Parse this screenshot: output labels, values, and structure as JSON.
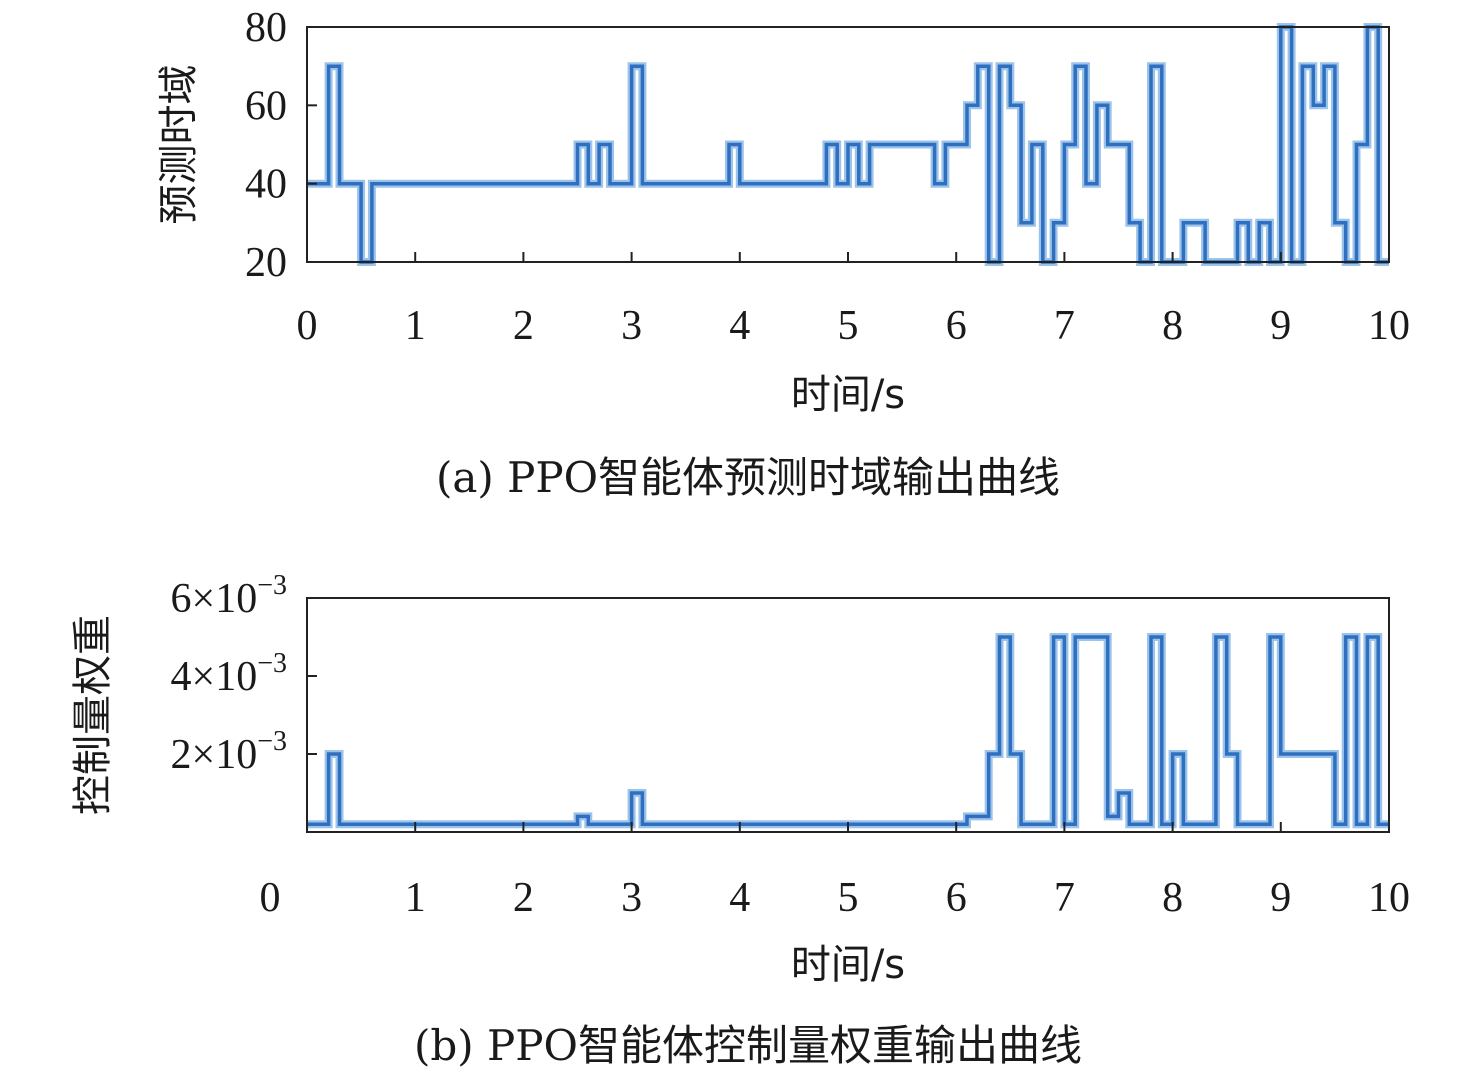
{
  "chart_data": [
    {
      "type": "line",
      "step": true,
      "caption": "(a) PPO智能体预测时域输出曲线",
      "xlabel": "时间/s",
      "ylabel": "预测时域",
      "xlim": [
        0,
        10
      ],
      "ylim": [
        20,
        80
      ],
      "xticks": [
        0,
        1,
        2,
        3,
        4,
        5,
        6,
        7,
        8,
        9,
        10
      ],
      "xtick_labels": [
        "0",
        "1",
        "2",
        "3",
        "4",
        "5",
        "6",
        "7",
        "8",
        "9",
        "10"
      ],
      "yticks": [
        20,
        40,
        60,
        80
      ],
      "ytick_labels": [
        "20",
        "40",
        "60",
        "80"
      ],
      "line_color": "#2f6fc0",
      "grid": false,
      "series": [
        {
          "x": [
            0,
            0.2,
            0.3,
            0.5,
            0.6,
            2.5,
            2.6,
            2.7,
            2.8,
            3.0,
            3.1,
            3.9,
            4.0,
            4.8,
            4.9,
            5.0,
            5.1,
            5.2,
            5.8,
            5.9,
            6.0,
            6.1,
            6.2,
            6.3,
            6.4,
            6.5,
            6.6,
            6.7,
            6.8,
            6.9,
            7.0,
            7.1,
            7.2,
            7.3,
            7.4,
            7.5,
            7.6,
            7.7,
            7.8,
            7.9,
            8.0,
            8.1,
            8.3,
            8.6,
            8.7,
            8.8,
            8.9,
            9.0,
            9.1,
            9.2,
            9.3,
            9.4,
            9.5,
            9.6,
            9.7,
            9.8,
            9.9
          ],
          "y": [
            40,
            70,
            40,
            20,
            40,
            50,
            40,
            50,
            40,
            70,
            40,
            50,
            40,
            50,
            40,
            50,
            40,
            50,
            40,
            50,
            50,
            60,
            70,
            20,
            70,
            60,
            30,
            50,
            20,
            30,
            50,
            70,
            40,
            60,
            50,
            50,
            30,
            20,
            70,
            20,
            20,
            30,
            20,
            30,
            20,
            30,
            20,
            80,
            20,
            70,
            60,
            70,
            30,
            20,
            50,
            80,
            20
          ],
          "x_end": 10
        }
      ]
    },
    {
      "type": "line",
      "step": true,
      "caption": "(b) PPO智能体控制量权重输出曲线",
      "xlabel": "时间/s",
      "ylabel": "控制量权重",
      "xlim": [
        0,
        10
      ],
      "ylim": [
        0,
        0.006
      ],
      "xticks": [
        0,
        1,
        2,
        3,
        4,
        5,
        6,
        7,
        8,
        9,
        10
      ],
      "xtick_labels": [
        "0",
        "1",
        "2",
        "3",
        "4",
        "5",
        "6",
        "7",
        "8",
        "9",
        "10"
      ],
      "yticks": [
        0.002,
        0.004,
        0.006
      ],
      "ytick_labels": [
        {
          "mant": "2",
          "mul": "×",
          "base": "10",
          "exp": "−3"
        },
        {
          "mant": "4",
          "mul": "×",
          "base": "10",
          "exp": "−3"
        },
        {
          "mant": "6",
          "mul": "×",
          "base": "10",
          "exp": "−3"
        }
      ],
      "line_color": "#2f6fc0",
      "grid": false,
      "series": [
        {
          "x": [
            0,
            0.2,
            0.3,
            2.5,
            2.6,
            3.0,
            3.1,
            6.0,
            6.1,
            6.3,
            6.4,
            6.5,
            6.6,
            6.9,
            7.0,
            7.1,
            7.2,
            7.4,
            7.5,
            7.6,
            7.8,
            7.9,
            8.0,
            8.1,
            8.4,
            8.5,
            8.6,
            8.9,
            9.0,
            9.1,
            9.4,
            9.5,
            9.6,
            9.7,
            9.8,
            9.9
          ],
          "y": [
            0.0002,
            0.002,
            0.0002,
            0.0004,
            0.0002,
            0.001,
            0.0002,
            0.0002,
            0.0004,
            0.002,
            0.005,
            0.002,
            0.0002,
            0.005,
            0.0002,
            0.005,
            0.005,
            0.0004,
            0.001,
            0.0002,
            0.005,
            0.0002,
            0.002,
            0.0002,
            0.005,
            0.002,
            0.0002,
            0.005,
            0.002,
            0.002,
            0.002,
            0.0002,
            0.005,
            0.0002,
            0.005,
            0.0002
          ],
          "x_end": 10
        }
      ]
    }
  ]
}
